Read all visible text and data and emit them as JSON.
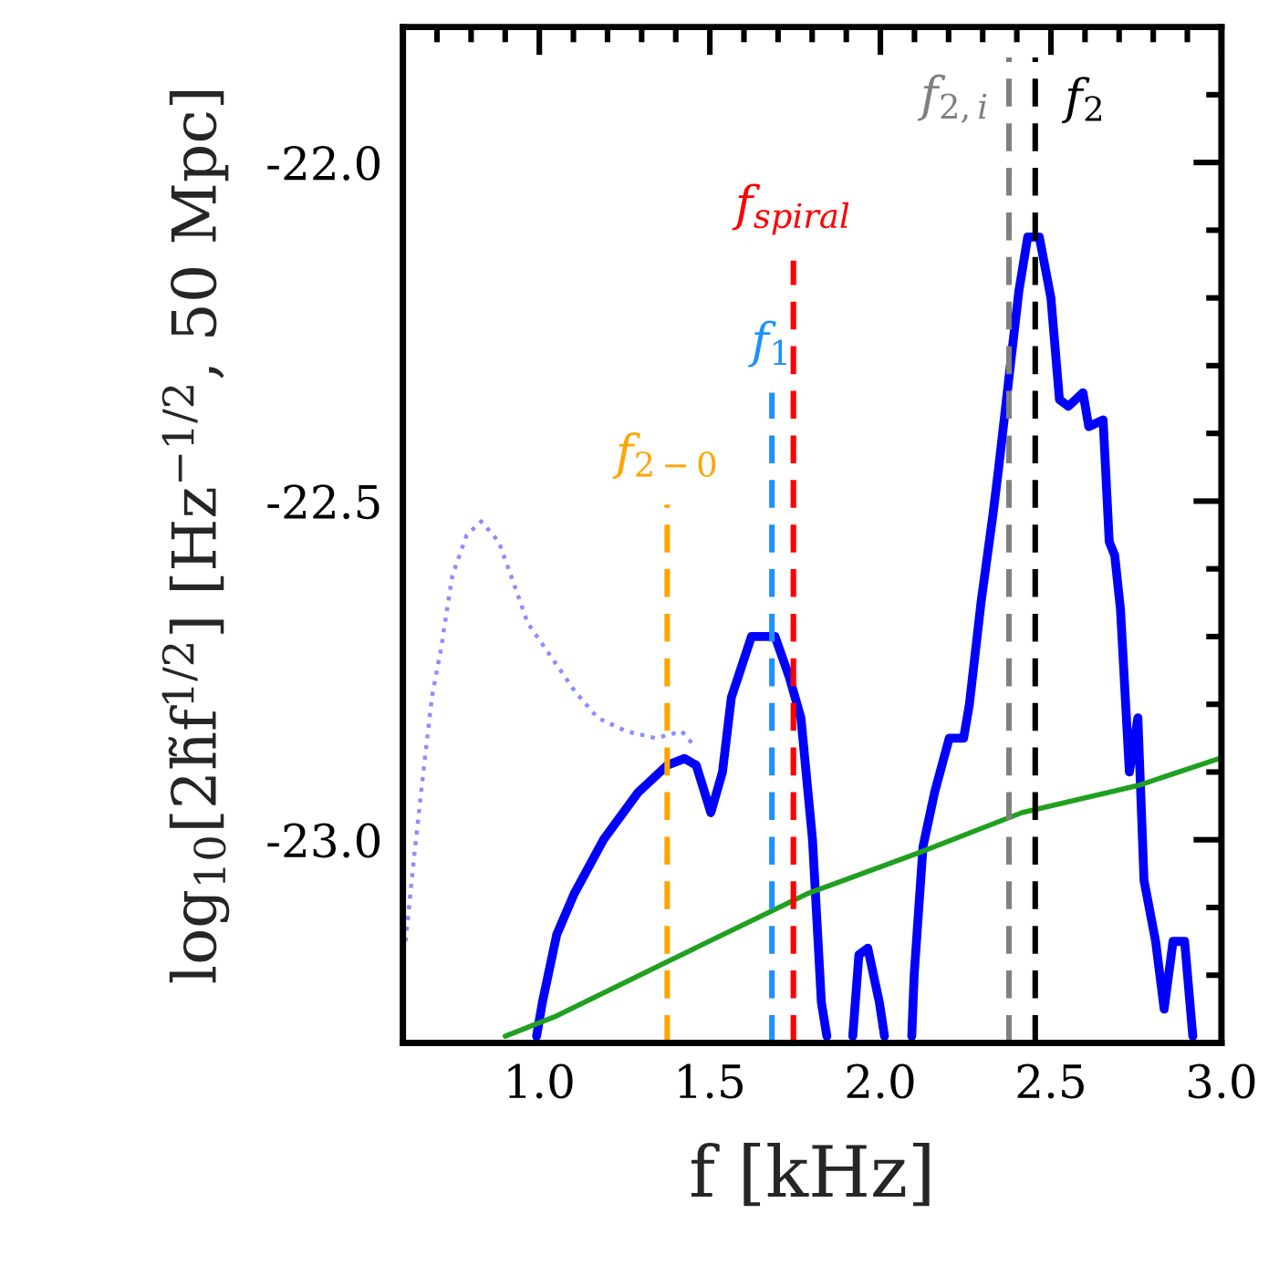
{
  "chart_data": {
    "type": "line",
    "xlabel": "f [kHz]",
    "ylabel": "log$_{10}$[2h̃f$^{1/2}$] [Hz$^{−1/2}$, 50 Mpc]",
    "series": [
      {
        "color": "#0000ff",
        "line_style": "solid",
        "x": [
          0.992,
          1.009,
          1.051,
          1.102,
          1.188,
          1.29,
          1.375,
          1.426,
          1.46,
          1.503,
          1.537,
          1.563,
          1.622,
          1.691,
          1.733,
          1.767,
          1.801,
          1.827,
          1.843
        ],
        "values": [
          -23.29,
          -23.24,
          -23.14,
          -23.08,
          -23.0,
          -22.93,
          -22.89,
          -22.88,
          -22.89,
          -22.96,
          -22.9,
          -22.79,
          -22.7,
          -22.7,
          -22.76,
          -22.82,
          -23.0,
          -23.24,
          -23.29
        ]
      },
      {
        "color": "#0000ff",
        "line_style": "solid",
        "x": [
          1.919,
          1.937,
          1.963,
          1.997,
          2.012
        ],
        "values": [
          -23.29,
          -23.17,
          -23.16,
          -23.24,
          -23.29
        ]
      },
      {
        "color": "#0000ff",
        "line_style": "solid",
        "x": [
          2.092,
          2.099,
          2.125,
          2.159,
          2.202,
          2.244,
          2.261,
          2.295,
          2.33,
          2.347,
          2.381,
          2.406,
          2.432,
          2.466,
          2.5,
          2.525,
          2.551,
          2.594,
          2.611,
          2.653,
          2.671,
          2.687,
          2.704,
          2.73,
          2.755,
          2.773,
          2.807,
          2.832,
          2.858,
          2.892,
          2.916
        ],
        "values": [
          -23.29,
          -23.2,
          -23.01,
          -22.93,
          -22.85,
          -22.85,
          -22.8,
          -22.65,
          -22.52,
          -22.45,
          -22.3,
          -22.19,
          -22.11,
          -22.11,
          -22.2,
          -22.35,
          -22.36,
          -22.34,
          -22.39,
          -22.38,
          -22.56,
          -22.58,
          -22.66,
          -22.9,
          -22.82,
          -23.06,
          -23.15,
          -23.25,
          -23.15,
          -23.15,
          -23.29
        ]
      },
      {
        "color": "#7070ff",
        "line_style": "dotted",
        "x": [
          0.608,
          0.634,
          0.66,
          0.685,
          0.711,
          0.745,
          0.787,
          0.83,
          0.881,
          0.924,
          0.966,
          1.035,
          1.103,
          1.171,
          1.256,
          1.341,
          1.418,
          1.452
        ],
        "values": [
          -23.15,
          -23.02,
          -22.9,
          -22.79,
          -22.72,
          -22.61,
          -22.55,
          -22.53,
          -22.56,
          -22.62,
          -22.68,
          -22.73,
          -22.78,
          -22.82,
          -22.84,
          -22.85,
          -22.84,
          -22.86
        ]
      },
      {
        "color": "#20a020",
        "line_style": "solid",
        "x": [
          0.9,
          1.051,
          1.375,
          1.784,
          2.108,
          2.415,
          2.755,
          2.994
        ],
        "values": [
          -23.29,
          -23.26,
          -23.18,
          -23.08,
          -23.02,
          -22.96,
          -22.92,
          -22.88
        ]
      }
    ],
    "ref_lines": [
      {
        "axis": "x",
        "value": 1.375,
        "label": "f$_{2−0}$",
        "color": "#ffa500",
        "line_style": "dashed"
      },
      {
        "axis": "x",
        "value": 1.682,
        "label": "f$_{1}$",
        "color": "#1e90ff",
        "line_style": "dashed"
      },
      {
        "axis": "x",
        "value": 1.745,
        "label": "f$_{spiral}$",
        "color": "#ff0000",
        "line_style": "dashed"
      },
      {
        "axis": "x",
        "value": 2.377,
        "label": "f$_{2,i}$",
        "color": "#808080",
        "line_style": "dashed"
      },
      {
        "axis": "x",
        "value": 2.454,
        "label": "f$_{2}$",
        "color": "#000000",
        "line_style": "dashed"
      }
    ],
    "xlim": [
      0.6,
      3.0
    ],
    "ylim": [
      -23.3,
      -21.8
    ],
    "xticks": [
      {
        "value": 0.7,
        "label": null
      },
      {
        "value": 0.8,
        "label": null
      },
      {
        "value": 0.9,
        "label": null
      },
      {
        "value": 1.0,
        "label": "1.0"
      },
      {
        "value": 1.1,
        "label": null
      },
      {
        "value": 1.2,
        "label": null
      },
      {
        "value": 1.3,
        "label": null
      },
      {
        "value": 1.4,
        "label": null
      },
      {
        "value": 1.5,
        "label": "1.5"
      },
      {
        "value": 1.6,
        "label": null
      },
      {
        "value": 1.7,
        "label": null
      },
      {
        "value": 1.8,
        "label": null
      },
      {
        "value": 1.9,
        "label": null
      },
      {
        "value": 2.0,
        "label": "2.0"
      },
      {
        "value": 2.1,
        "label": null
      },
      {
        "value": 2.2,
        "label": null
      },
      {
        "value": 2.3,
        "label": null
      },
      {
        "value": 2.4,
        "label": null
      },
      {
        "value": 2.5,
        "label": "2.5"
      },
      {
        "value": 2.6,
        "label": null
      },
      {
        "value": 2.7,
        "label": null
      },
      {
        "value": 2.8,
        "label": null
      },
      {
        "value": 2.9,
        "label": null
      },
      {
        "value": 3.0,
        "label": "3.0"
      }
    ],
    "yticks": [
      {
        "value": -23.2,
        "label": null
      },
      {
        "value": -23.1,
        "label": null
      },
      {
        "value": -23.0,
        "label": "-23.0"
      },
      {
        "value": -22.9,
        "label": null
      },
      {
        "value": -22.8,
        "label": null
      },
      {
        "value": -22.7,
        "label": null
      },
      {
        "value": -22.6,
        "label": null
      },
      {
        "value": -22.5,
        "label": "-22.5"
      },
      {
        "value": -22.4,
        "label": null
      },
      {
        "value": -22.3,
        "label": null
      },
      {
        "value": -22.2,
        "label": null
      },
      {
        "value": -22.1,
        "label": null
      },
      {
        "value": -22.0,
        "label": "-22.0"
      },
      {
        "value": -21.9,
        "label": null
      }
    ],
    "grid": false,
    "legend": false
  }
}
